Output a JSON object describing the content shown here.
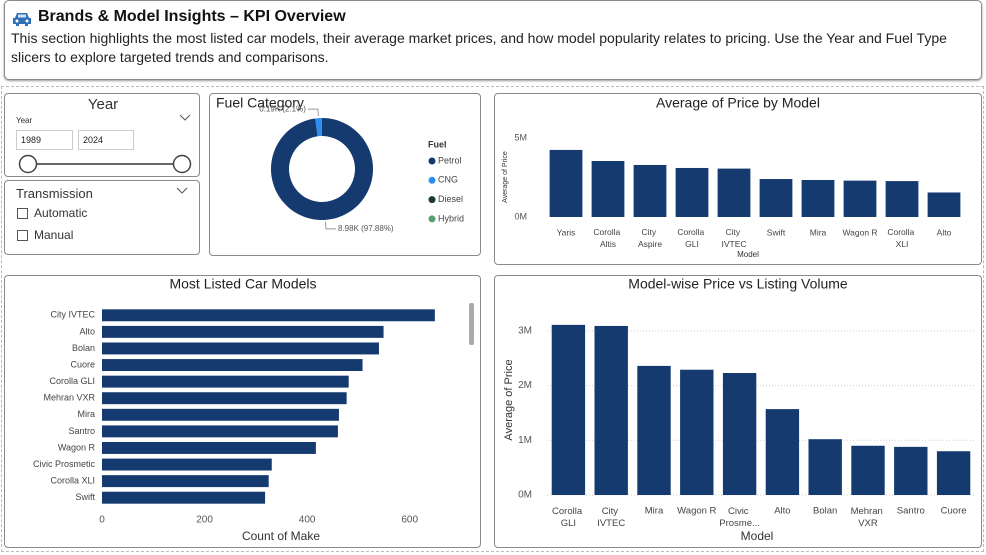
{
  "header": {
    "title": "Brands & Model Insights – KPI Overview",
    "description": "This section highlights the most listed car models, their average market prices, and how model popularity relates to pricing. Use the Year and Fuel Type slicers to explore targeted trends and comparisons."
  },
  "year_slicer": {
    "title": "Year",
    "label": "Year",
    "from": "1989",
    "to": "2024"
  },
  "transmission_slicer": {
    "title": "Transmission",
    "options": [
      "Automatic",
      "Manual"
    ]
  },
  "chart_data": [
    {
      "type": "pie",
      "donut": true,
      "title": "Fuel Category",
      "legend_title": "Fuel",
      "categories": [
        "Petrol",
        "CNG",
        "Diesel",
        "Hybrid"
      ],
      "values": [
        8980,
        190,
        3,
        2
      ],
      "value_labels": [
        "8.98K (97.88%)",
        "0.19K (2.1%)",
        null,
        null
      ],
      "colors": [
        "#143a6f",
        "#2b8ef0",
        "#1d3a2d",
        "#5a9e6f"
      ]
    },
    {
      "type": "bar",
      "title": "Average of Price by Model",
      "x_label": "Model",
      "y_label": "Average of Price",
      "categories": [
        "Yaris",
        "Corolla Altis",
        "City Aspire",
        "Corolla GLI",
        "City IVTEC",
        "Swift",
        "Mira",
        "Wagon R",
        "Corolla XLI",
        "Alto"
      ],
      "values": [
        4240000,
        3540000,
        3290000,
        3100000,
        3060000,
        2400000,
        2340000,
        2300000,
        2270000,
        1550000
      ],
      "color": "#143a6f",
      "ylim": [
        0,
        5500000
      ],
      "yticks": [
        {
          "value": 0,
          "label": "0M"
        },
        {
          "value": 5000000,
          "label": "5M"
        }
      ],
      "grid": false
    },
    {
      "type": "bar",
      "horizontal": true,
      "title": "Most Listed Car Models",
      "x_label": "Count of Make",
      "categories": [
        "City IVTEC",
        "Alto",
        "Bolan",
        "Cuore",
        "Corolla GLI",
        "Mehran VXR",
        "Mira",
        "Santro",
        "Wagon R",
        "Civic Prosmetic",
        "Corolla XLI",
        "Swift"
      ],
      "values": [
        649,
        549,
        540,
        508,
        481,
        477,
        462,
        460,
        417,
        331,
        325,
        318
      ],
      "color": "#143a6f",
      "xlim": [
        0,
        700
      ],
      "xticks": [
        0,
        200,
        400,
        600
      ],
      "grid": false
    },
    {
      "type": "bar",
      "title": "Model-wise Price vs Listing Volume",
      "x_label": "Model",
      "y_label": "Average of Price",
      "categories": [
        "Corolla GLI",
        "City IVTEC",
        "Mira",
        "Wagon R",
        "Civic Prosme...",
        "Alto",
        "Bolan",
        "Mehran VXR",
        "Santro",
        "Cuore"
      ],
      "values": [
        3110000,
        3090000,
        2360000,
        2290000,
        2230000,
        1570000,
        1020000,
        900000,
        880000,
        800000
      ],
      "color": "#143a6f",
      "ylim": [
        0,
        3400000
      ],
      "yticks": [
        {
          "value": 0,
          "label": "0M"
        },
        {
          "value": 1000000,
          "label": "1M"
        },
        {
          "value": 2000000,
          "label": "2M"
        },
        {
          "value": 3000000,
          "label": "3M"
        }
      ],
      "grid": true
    }
  ]
}
